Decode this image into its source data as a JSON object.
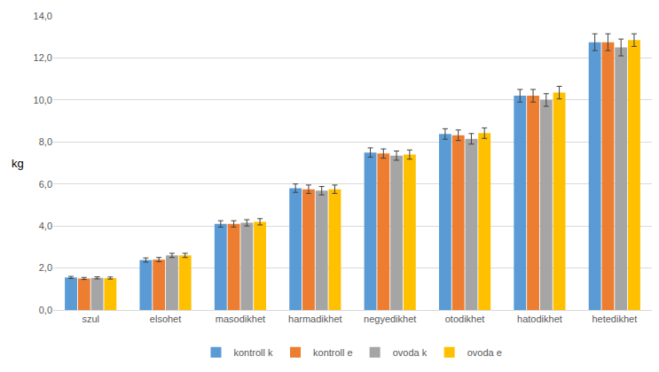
{
  "chart_data": {
    "type": "bar",
    "ylabel": "kg",
    "categories": [
      "szul",
      "elsohet",
      "masodikhet",
      "harmadikhet",
      "negyedikhet",
      "otodikhet",
      "hatodikhet",
      "hetedikhet"
    ],
    "series": [
      {
        "name": "kontroll k",
        "color": "#5b9bd5",
        "values": [
          1.55,
          2.38,
          4.1,
          5.8,
          7.5,
          8.38,
          10.2,
          12.75
        ],
        "error": [
          0.05,
          0.1,
          0.15,
          0.2,
          0.22,
          0.25,
          0.3,
          0.4
        ]
      },
      {
        "name": "kontroll e",
        "color": "#ed7d31",
        "values": [
          1.5,
          2.4,
          4.1,
          5.75,
          7.45,
          8.32,
          10.2,
          12.75
        ],
        "error": [
          0.05,
          0.1,
          0.15,
          0.2,
          0.22,
          0.25,
          0.3,
          0.4
        ]
      },
      {
        "name": "ovoda k",
        "color": "#a5a5a5",
        "values": [
          1.53,
          2.6,
          4.15,
          5.68,
          7.35,
          8.15,
          10.0,
          12.5
        ],
        "error": [
          0.05,
          0.1,
          0.15,
          0.2,
          0.22,
          0.25,
          0.3,
          0.4
        ]
      },
      {
        "name": "ovoda e",
        "color": "#ffc000",
        "values": [
          1.52,
          2.6,
          4.2,
          5.75,
          7.4,
          8.42,
          10.35,
          12.85
        ],
        "error": [
          0.05,
          0.1,
          0.15,
          0.2,
          0.22,
          0.25,
          0.3,
          0.3
        ]
      }
    ],
    "ylim": [
      0,
      14
    ],
    "yticks": [
      {
        "value": 0,
        "label": "0,0"
      },
      {
        "value": 2,
        "label": "2,0"
      },
      {
        "value": 4,
        "label": "4,0"
      },
      {
        "value": 6,
        "label": "6,0"
      },
      {
        "value": 8,
        "label": "8,0"
      },
      {
        "value": 10,
        "label": "10,0"
      },
      {
        "value": 12,
        "label": "12,0"
      },
      {
        "value": 14,
        "label": "14,0"
      }
    ],
    "grid": true,
    "legend": "bottom"
  }
}
